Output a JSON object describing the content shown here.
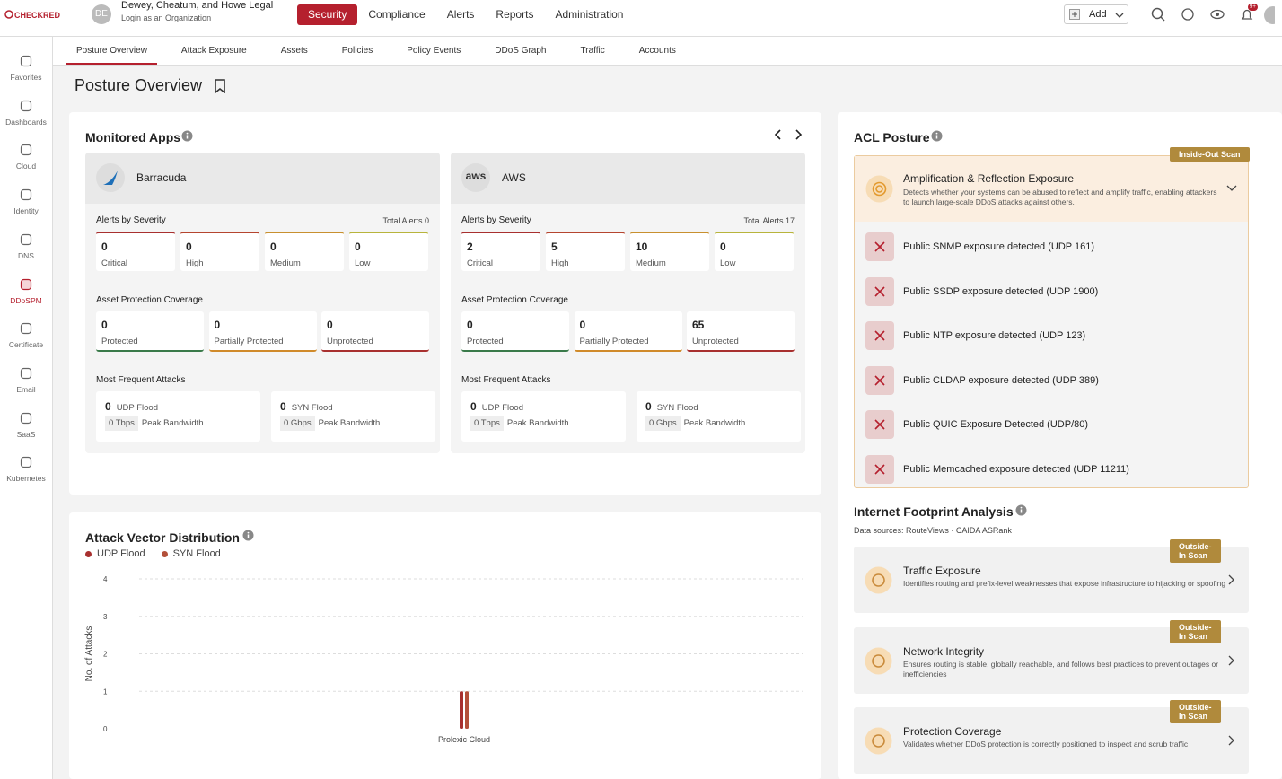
{
  "header": {
    "brand": "CHECKRED",
    "org_initials": "DE",
    "org_name": "Dewey, Cheatum, and Howe Legal",
    "org_login": "Login as an Organization",
    "nav": [
      "Security",
      "Compliance",
      "Alerts",
      "Reports",
      "Administration"
    ],
    "nav_active": 0,
    "add": "Add",
    "notifications": "9+"
  },
  "sidebar": {
    "items": [
      "Favorites",
      "Dashboards",
      "Cloud",
      "Identity",
      "DNS",
      "DDoSPM",
      "Certificate",
      "Email",
      "SaaS",
      "Kubernetes"
    ],
    "active": 5
  },
  "tabs": {
    "items": [
      "Posture Overview",
      "Attack Exposure",
      "Assets",
      "Policies",
      "Policy Events",
      "DDoS Graph",
      "Traffic",
      "Accounts"
    ],
    "active": 0
  },
  "page_title": "Posture Overview",
  "monitored_apps": {
    "title": "Monitored Apps",
    "apps": [
      {
        "name": "Barracuda",
        "alerts_title": "Alerts by Severity",
        "total_label": "Total Alerts",
        "total": 0,
        "severity": [
          {
            "value": 0,
            "label": "Critical"
          },
          {
            "value": 0,
            "label": "High"
          },
          {
            "value": 0,
            "label": "Medium"
          },
          {
            "value": 0,
            "label": "Low"
          }
        ],
        "coverage_title": "Asset Protection Coverage",
        "coverage": [
          {
            "value": 0,
            "label": "Protected"
          },
          {
            "value": 0,
            "label": "Partially Protected"
          },
          {
            "value": 0,
            "label": "Unprotected"
          }
        ],
        "attacks_title": "Most Frequent Attacks",
        "attacks": [
          {
            "count": 0,
            "name": "UDP Flood",
            "bandwidth": "0 Tbps",
            "bandwidth_label": "Peak Bandwidth"
          },
          {
            "count": 0,
            "name": "SYN Flood",
            "bandwidth": "0 Gbps",
            "bandwidth_label": "Peak Bandwidth"
          }
        ]
      },
      {
        "name": "AWS",
        "logo_text": "aws",
        "alerts_title": "Alerts by Severity",
        "total_label": "Total Alerts",
        "total": 17,
        "severity": [
          {
            "value": 2,
            "label": "Critical"
          },
          {
            "value": 5,
            "label": "High"
          },
          {
            "value": 10,
            "label": "Medium"
          },
          {
            "value": 0,
            "label": "Low"
          }
        ],
        "coverage_title": "Asset Protection Coverage",
        "coverage": [
          {
            "value": 0,
            "label": "Protected"
          },
          {
            "value": 0,
            "label": "Partially Protected"
          },
          {
            "value": 65,
            "label": "Unprotected"
          }
        ],
        "attacks_title": "Most Frequent Attacks",
        "attacks": [
          {
            "count": 0,
            "name": "UDP Flood",
            "bandwidth": "0 Tbps",
            "bandwidth_label": "Peak Bandwidth"
          },
          {
            "count": 0,
            "name": "SYN Flood",
            "bandwidth": "0 Gbps",
            "bandwidth_label": "Peak Bandwidth"
          }
        ]
      }
    ]
  },
  "acl": {
    "title": "ACL Posture",
    "badge": "Inside-Out Scan",
    "section_title": "Amplification & Reflection Exposure",
    "section_desc": "Detects whether your systems can be abused to reflect and amplify traffic, enabling attackers to launch large-scale DDoS attacks against others.",
    "items": [
      "Public SNMP exposure detected (UDP 161)",
      "Public SSDP exposure detected (UDP 1900)",
      "Public NTP exposure detected (UDP 123)",
      "Public CLDAP exposure detected (UDP 389)",
      "Public QUIC Exposure Detected (UDP/80)",
      "Public Memcached exposure detected (UDP 11211)"
    ]
  },
  "footprint": {
    "title": "Internet Footprint Analysis",
    "sources": "Data sources: RouteViews · CAIDA ASRank",
    "cards": [
      {
        "badge": "Outside-In Scan",
        "title": "Traffic Exposure",
        "desc": "Identifies routing and prefix-level weaknesses that expose infrastructure to hijacking or spoofing"
      },
      {
        "badge": "Outside-In Scan",
        "title": "Network Integrity",
        "desc": "Ensures routing is stable, globally reachable, and follows best practices to prevent outages or inefficiencies"
      },
      {
        "badge": "Outside-In Scan",
        "title": "Protection Coverage",
        "desc": "Validates whether DDoS protection is correctly positioned to inspect and scrub traffic"
      }
    ]
  },
  "chart_data": {
    "type": "bar",
    "title": "Attack Vector Distribution",
    "y_label": "No. of Attacks",
    "categories": [
      "Prolexic Cloud"
    ],
    "series": [
      {
        "name": "UDP Flood",
        "color": "#a8302f",
        "values": [
          1
        ]
      },
      {
        "name": "SYN Flood",
        "color": "#b3503a",
        "values": [
          1
        ]
      }
    ],
    "ylim": [
      0,
      4
    ],
    "yticks": [
      0,
      1,
      2,
      3,
      4
    ],
    "grid": true
  }
}
